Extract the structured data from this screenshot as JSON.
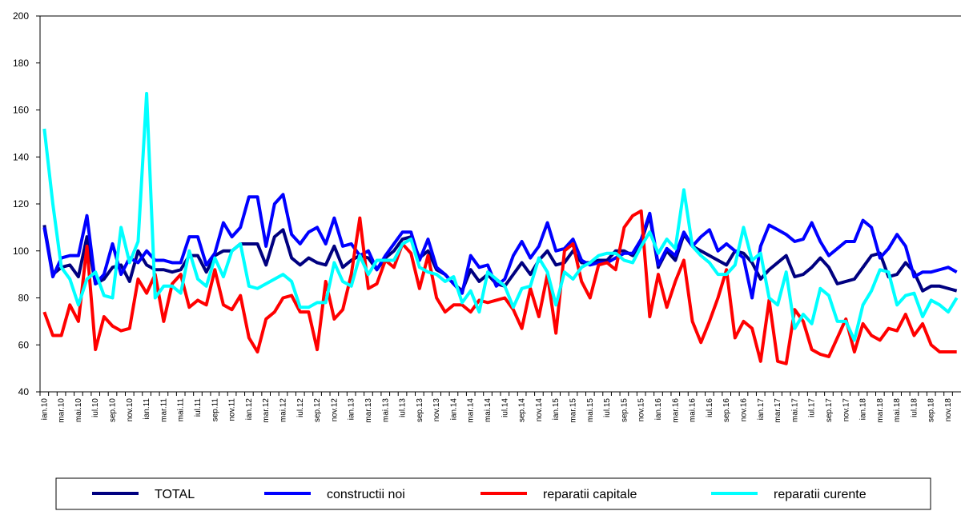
{
  "chart_data": {
    "type": "line",
    "categories": [
      "ian.10",
      null,
      "mar.10",
      null,
      "mai.10",
      null,
      "iul.10",
      null,
      "sep.10",
      null,
      "nov.10",
      null,
      "ian.11",
      null,
      "mar.11",
      null,
      "mai.11",
      null,
      "iul.11",
      null,
      "sep.11",
      null,
      "nov.11",
      null,
      "ian.12",
      null,
      "mar.12",
      null,
      "mai.12",
      null,
      "iul.12",
      null,
      "sep.12",
      null,
      "nov.12",
      null,
      "ian.13",
      null,
      "mar.13",
      null,
      "mai.13",
      null,
      "iul.13",
      null,
      "sep.13",
      null,
      "nov.13",
      null,
      "ian.14",
      null,
      "mar.14",
      null,
      "mai.14",
      null,
      "iul.14",
      null,
      "sep.14",
      null,
      "nov.14",
      null,
      "ian.15",
      null,
      "mar.15",
      null,
      "mai.15",
      null,
      "iul.15",
      null,
      "sep.15",
      null,
      "nov.15",
      null,
      "ian.16",
      null,
      "mar.16",
      null,
      "mai.16",
      null,
      "iul.16",
      null,
      "sep.16",
      null,
      "nov.16",
      null,
      "ian.17",
      null,
      "mar.17",
      null,
      "mai.17",
      null,
      "iul.17",
      null,
      "sep.17",
      null,
      "nov.17",
      null,
      "ian.18",
      null,
      "mar.18",
      null,
      "mai.18",
      null,
      "iul.18",
      null,
      "sep.18",
      null,
      "nov.18",
      null
    ],
    "series": [
      {
        "name": "TOTAL",
        "color": "#000080",
        "values": [
          111,
          90,
          93,
          94,
          89,
          106,
          86,
          88,
          93,
          94,
          87,
          100,
          94,
          92,
          92,
          91,
          92,
          98,
          98,
          91,
          98,
          100,
          100,
          103,
          103,
          103,
          94,
          106,
          109,
          97,
          94,
          97,
          95,
          94,
          102,
          93,
          96,
          98,
          97,
          92,
          97,
          100,
          105,
          106,
          97,
          100,
          92,
          90,
          86,
          83,
          92,
          87,
          90,
          86,
          85,
          90,
          95,
          90,
          96,
          100,
          94,
          95,
          100,
          95,
          95,
          96,
          96,
          100,
          100,
          98,
          104,
          115,
          93,
          100,
          96,
          107,
          102,
          100,
          98,
          96,
          94,
          100,
          99,
          95,
          88,
          92,
          95,
          98,
          89,
          90,
          93,
          97,
          93,
          86,
          87,
          88,
          93,
          98,
          99,
          89,
          90,
          95,
          91,
          83,
          85,
          85,
          84,
          83
        ]
      },
      {
        "name": "constructii noi",
        "color": "#0000ff",
        "values": [
          110,
          89,
          97,
          98,
          98,
          115,
          86,
          90,
          103,
          90,
          97,
          95,
          100,
          96,
          96,
          95,
          95,
          106,
          106,
          94,
          99,
          112,
          106,
          110,
          123,
          123,
          102,
          120,
          124,
          107,
          103,
          108,
          110,
          103,
          114,
          102,
          103,
          98,
          100,
          92,
          98,
          103,
          108,
          108,
          96,
          105,
          93,
          90,
          86,
          82,
          98,
          93,
          94,
          85,
          88,
          98,
          104,
          97,
          102,
          112,
          100,
          101,
          105,
          96,
          94,
          95,
          95,
          97,
          99,
          99,
          105,
          116,
          94,
          101,
          98,
          108,
          102,
          106,
          109,
          100,
          103,
          100,
          97,
          80,
          102,
          111,
          109,
          107,
          104,
          105,
          112,
          104,
          98,
          101,
          104,
          104,
          113,
          110,
          97,
          101,
          107,
          102,
          89,
          91,
          91,
          92,
          93,
          91
        ]
      },
      {
        "name": "reparatii capitale",
        "color": "#ff0000",
        "values": [
          74,
          64,
          64,
          77,
          70,
          102,
          58,
          72,
          68,
          66,
          67,
          88,
          82,
          90,
          70,
          86,
          90,
          76,
          79,
          77,
          92,
          77,
          75,
          81,
          63,
          57,
          71,
          74,
          80,
          81,
          74,
          74,
          58,
          87,
          71,
          75,
          90,
          114,
          84,
          86,
          96,
          93,
          103,
          99,
          84,
          98,
          80,
          74,
          77,
          77,
          74,
          79,
          78,
          79,
          80,
          75,
          67,
          84,
          72,
          90,
          65,
          100,
          103,
          87,
          80,
          94,
          95,
          92,
          110,
          115,
          117,
          72,
          90,
          76,
          87,
          96,
          70,
          61,
          70,
          80,
          92,
          63,
          70,
          67,
          53,
          79,
          53,
          52,
          75,
          70,
          58,
          56,
          55,
          63,
          71,
          57,
          69,
          64,
          62,
          67,
          66,
          73,
          64,
          69,
          60,
          57,
          57,
          57
        ]
      },
      {
        "name": "reparatii curente",
        "color": "#00ffff",
        "values": [
          152,
          120,
          93,
          88,
          77,
          88,
          91,
          81,
          80,
          110,
          95,
          104,
          167,
          80,
          85,
          85,
          82,
          100,
          88,
          85,
          97,
          89,
          100,
          103,
          85,
          84,
          86,
          88,
          90,
          87,
          76,
          76,
          78,
          78,
          95,
          87,
          85,
          98,
          90,
          96,
          96,
          96,
          103,
          105,
          93,
          91,
          90,
          87,
          89,
          78,
          83,
          74,
          91,
          88,
          85,
          76,
          84,
          85,
          97,
          91,
          77,
          91,
          88,
          93,
          95,
          98,
          99,
          99,
          96,
          95,
          102,
          108,
          99,
          105,
          101,
          126,
          102,
          98,
          95,
          90,
          90,
          94,
          110,
          96,
          99,
          80,
          77,
          91,
          67,
          73,
          69,
          84,
          81,
          70,
          70,
          62,
          77,
          83,
          92,
          91,
          77,
          81,
          82,
          72,
          79,
          77,
          74,
          80
        ]
      }
    ],
    "ylim": [
      40,
      200
    ],
    "yticks": [
      40,
      60,
      80,
      100,
      120,
      140,
      160,
      180,
      200
    ],
    "grid": false
  }
}
